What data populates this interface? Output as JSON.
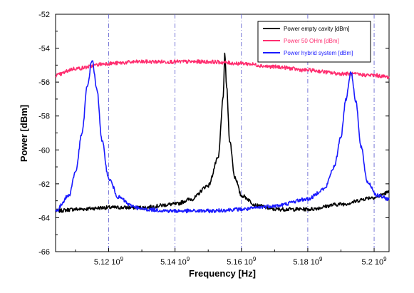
{
  "chart_data": {
    "type": "line",
    "xlabel": "Frequency [Hz]",
    "ylabel": "Power  [dBm]",
    "xlim": [
      5104000000.0,
      5204500000.0
    ],
    "ylim": [
      -66,
      -52
    ],
    "yticks": [
      -66,
      -64,
      -62,
      -60,
      -58,
      -56,
      -54,
      -52
    ],
    "ytick_labels": [
      "-66",
      "-64",
      "-62",
      "-60",
      "-58",
      "-56",
      "-54",
      "-52"
    ],
    "xticks": [
      5120000000.0,
      5140000000.0,
      5160000000.0,
      5180000000.0,
      5200000000.0
    ],
    "xtick_labels": [
      {
        "mantissa": "5.12",
        "base": "10",
        "exp": "9"
      },
      {
        "mantissa": "5.14",
        "base": "10",
        "exp": "9"
      },
      {
        "mantissa": "5.16",
        "base": "10",
        "exp": "9"
      },
      {
        "mantissa": "5.18",
        "base": "10",
        "exp": "9"
      },
      {
        "mantissa": "5.2",
        "base": "10",
        "exp": "9"
      }
    ],
    "grid": "vertical dashed",
    "legend_position": "top-right",
    "series": [
      {
        "name": "Power empty cavity [dBm]",
        "color": "#000000",
        "x": [
          5104000000.0,
          5110000000.0,
          5120000000.0,
          5130000000.0,
          5140000000.0,
          5145000000.0,
          5150000000.0,
          5153000000.0,
          5154500000.0,
          5155000000.0,
          5155500000.0,
          5156500000.0,
          5158000000.0,
          5160000000.0,
          5165000000.0,
          5170000000.0,
          5180000000.0,
          5190000000.0,
          5200000000.0,
          5204500000.0
        ],
        "y": [
          -63.6,
          -63.5,
          -63.4,
          -63.4,
          -63.2,
          -62.9,
          -62.1,
          -60.5,
          -57.0,
          -54.3,
          -56.2,
          -59.5,
          -61.6,
          -62.7,
          -63.3,
          -63.5,
          -63.5,
          -63.2,
          -62.8,
          -62.5
        ]
      },
      {
        "name": "Power 50 OHm [dBm]",
        "color": "#ff2d6f",
        "x": [
          5104000000.0,
          5110000000.0,
          5120000000.0,
          5130000000.0,
          5140000000.0,
          5150000000.0,
          5160000000.0,
          5170000000.0,
          5180000000.0,
          5190000000.0,
          5200000000.0,
          5204500000.0
        ],
        "y": [
          -55.6,
          -55.2,
          -54.9,
          -54.8,
          -54.8,
          -54.8,
          -54.9,
          -55.1,
          -55.3,
          -55.5,
          -55.6,
          -55.7
        ]
      },
      {
        "name": "Power hybrid system [dBm]",
        "color": "#1a1aff",
        "x": [
          5104000000.0,
          5108000000.0,
          5110000000.0,
          5112000000.0,
          5113500000.0,
          5115000000.0,
          5116500000.0,
          5118000000.0,
          5120000000.0,
          5123000000.0,
          5127000000.0,
          5130000000.0,
          5140000000.0,
          5150000000.0,
          5160000000.0,
          5170000000.0,
          5180000000.0,
          5185000000.0,
          5188000000.0,
          5190000000.0,
          5191500000.0,
          5193000000.0,
          5194500000.0,
          5196000000.0,
          5198000000.0,
          5201000000.0,
          5204500000.0
        ],
        "y": [
          -63.6,
          -62.7,
          -61.3,
          -59.0,
          -56.3,
          -54.7,
          -56.5,
          -59.5,
          -61.7,
          -62.8,
          -63.3,
          -63.5,
          -63.6,
          -63.6,
          -63.5,
          -63.3,
          -62.9,
          -62.3,
          -61.0,
          -59.2,
          -57.0,
          -55.4,
          -57.1,
          -59.8,
          -61.9,
          -62.7,
          -62.9
        ]
      }
    ]
  }
}
